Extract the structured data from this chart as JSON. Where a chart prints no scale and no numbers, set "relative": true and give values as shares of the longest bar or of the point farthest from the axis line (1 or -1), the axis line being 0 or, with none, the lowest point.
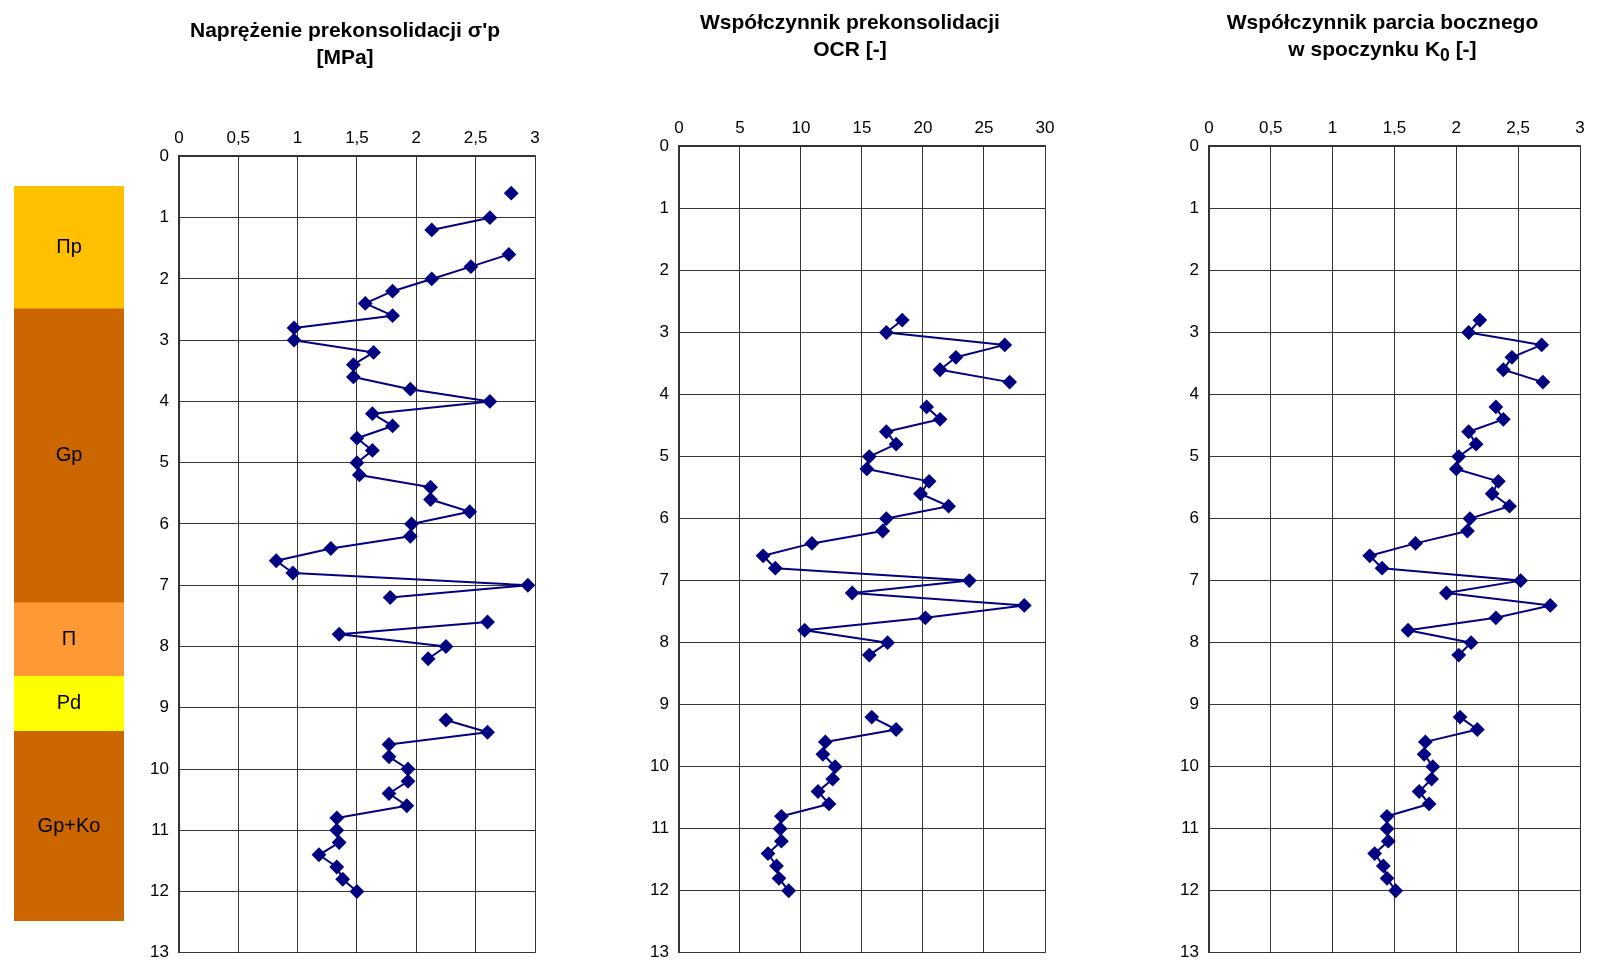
{
  "chart_data": [
    {
      "type": "bar",
      "stacked": true,
      "relative": true,
      "categories": [
        null
      ],
      "series": [
        {
          "name": "Gp+Ko",
          "color": "#cc6600",
          "values": [
            0.258
          ]
        },
        {
          "name": "Pd",
          "color": "#ffff00",
          "values": [
            0.075
          ]
        },
        {
          "name": "Π",
          "color": "#ff9933",
          "values": [
            0.1
          ]
        },
        {
          "name": "Gp",
          "color": "#cc6600",
          "values": [
            0.4
          ]
        },
        {
          "name": "Πp",
          "color": "#ffc000",
          "values": [
            0.167
          ]
        }
      ]
    },
    {
      "type": "line",
      "title": "Naprężenie prekonsolidacji   σ'p\n[MPa]",
      "xlim": [
        0,
        3
      ],
      "xticks": [
        0,
        {
          "value": 0.5,
          "label": "0,5"
        },
        1,
        {
          "value": 1.5,
          "label": "1,5"
        },
        2,
        {
          "value": 2.5,
          "label": "2,5"
        },
        3
      ],
      "ylim": [
        13,
        0
      ],
      "yticks": [
        0,
        1,
        2,
        3,
        4,
        5,
        6,
        7,
        8,
        9,
        10,
        11,
        12,
        13
      ],
      "grid": true,
      "marker": "diamond",
      "line_style": "solid",
      "series": [
        {
          "color": "#000080",
          "x": [
            2.8,
            null,
            2.62,
            2.13,
            null,
            2.78,
            2.46,
            2.13,
            1.8,
            1.57,
            1.8,
            0.97,
            0.97,
            1.64,
            1.47,
            1.47,
            1.95,
            2.62,
            1.63,
            1.8,
            1.5,
            1.63,
            1.5,
            1.52,
            2.12,
            2.12,
            2.45,
            1.96,
            1.95,
            1.28,
            0.82,
            0.96,
            2.94,
            1.78,
            null,
            2.6,
            1.35,
            2.25,
            2.1,
            null,
            2.25,
            2.6,
            1.77,
            1.77,
            1.93,
            1.93,
            1.77,
            1.92,
            1.33,
            1.33,
            1.35,
            1.18,
            1.33,
            1.38,
            1.5
          ],
          "values": [
            0.6,
            null,
            1.0,
            1.2,
            null,
            1.6,
            1.8,
            2.0,
            2.2,
            2.4,
            2.6,
            2.8,
            3.0,
            3.2,
            3.4,
            3.6,
            3.8,
            4.0,
            4.2,
            4.4,
            4.6,
            4.8,
            5.0,
            5.2,
            5.4,
            5.6,
            5.8,
            6.0,
            6.2,
            6.4,
            6.6,
            6.8,
            7.0,
            7.2,
            null,
            7.6,
            7.8,
            8.0,
            8.2,
            null,
            9.2,
            9.4,
            9.6,
            9.8,
            10.0,
            10.2,
            10.4,
            10.6,
            10.8,
            11.0,
            11.2,
            11.4,
            11.6,
            11.8,
            12.0
          ]
        }
      ]
    },
    {
      "type": "line",
      "title": "Współczynnik prekonsolidacji\nOCR [-]",
      "xlim": [
        0,
        30
      ],
      "xticks": [
        0,
        5,
        10,
        15,
        20,
        25,
        30
      ],
      "ylim": [
        13,
        0
      ],
      "yticks": [
        0,
        1,
        2,
        3,
        4,
        5,
        6,
        7,
        8,
        9,
        10,
        11,
        12,
        13
      ],
      "grid": true,
      "marker": "diamond",
      "line_style": "solid",
      "series": [
        {
          "color": "#000080",
          "x": [
            18.3,
            17.0,
            26.7,
            22.7,
            21.4,
            27.1,
            null,
            20.3,
            21.4,
            17.0,
            17.8,
            15.6,
            15.4,
            20.5,
            19.8,
            22.1,
            17.0,
            16.7,
            10.9,
            6.9,
            7.9,
            23.8,
            14.2,
            28.3,
            20.2,
            10.3,
            17.1,
            15.6,
            null,
            15.8,
            17.8,
            12.0,
            11.8,
            12.8,
            12.6,
            11.4,
            12.3,
            8.4,
            8.3,
            8.4,
            7.3,
            8.0,
            8.2,
            9.0
          ],
          "values": [
            2.8,
            3.0,
            3.2,
            3.4,
            3.6,
            3.8,
            null,
            4.2,
            4.4,
            4.6,
            4.8,
            5.0,
            5.2,
            5.4,
            5.6,
            5.8,
            6.0,
            6.2,
            6.4,
            6.6,
            6.8,
            7.0,
            7.2,
            7.4,
            7.6,
            7.8,
            8.0,
            8.2,
            null,
            9.2,
            9.4,
            9.6,
            9.8,
            10.0,
            10.2,
            10.4,
            10.6,
            10.8,
            11.0,
            11.2,
            11.4,
            11.6,
            11.8,
            12.0
          ]
        }
      ]
    },
    {
      "type": "line",
      "title": "Współczynnik parcia bocznego\nw spoczynku K$_{0}$ [-]",
      "xlim": [
        0,
        3
      ],
      "xticks": [
        0,
        {
          "value": 0.5,
          "label": "0,5"
        },
        1,
        {
          "value": 1.5,
          "label": "1,5"
        },
        2,
        {
          "value": 2.5,
          "label": "2,5"
        },
        3
      ],
      "ylim": [
        13,
        0
      ],
      "yticks": [
        0,
        1,
        2,
        3,
        4,
        5,
        6,
        7,
        8,
        9,
        10,
        11,
        12,
        13
      ],
      "grid": true,
      "marker": "diamond",
      "line_style": "solid",
      "series": [
        {
          "color": "#000080",
          "x": [
            2.19,
            2.1,
            2.69,
            2.45,
            2.38,
            2.7,
            null,
            2.32,
            2.38,
            2.1,
            2.16,
            2.02,
            2.0,
            2.34,
            2.29,
            2.43,
            2.11,
            2.09,
            1.67,
            1.3,
            1.4,
            2.52,
            1.92,
            2.76,
            2.32,
            1.61,
            2.12,
            2.02,
            null,
            2.03,
            2.17,
            1.75,
            1.74,
            1.81,
            1.8,
            1.7,
            1.78,
            1.44,
            1.44,
            1.45,
            1.34,
            1.41,
            1.44,
            1.51
          ],
          "values": [
            2.8,
            3.0,
            3.2,
            3.4,
            3.6,
            3.8,
            null,
            4.2,
            4.4,
            4.6,
            4.8,
            5.0,
            5.2,
            5.4,
            5.6,
            5.8,
            6.0,
            6.2,
            6.4,
            6.6,
            6.8,
            7.0,
            7.2,
            7.4,
            7.6,
            7.8,
            8.0,
            8.2,
            null,
            9.2,
            9.4,
            9.6,
            9.8,
            10.0,
            10.2,
            10.4,
            10.6,
            10.8,
            11.0,
            11.2,
            11.4,
            11.6,
            11.8,
            12.0
          ]
        }
      ]
    }
  ]
}
